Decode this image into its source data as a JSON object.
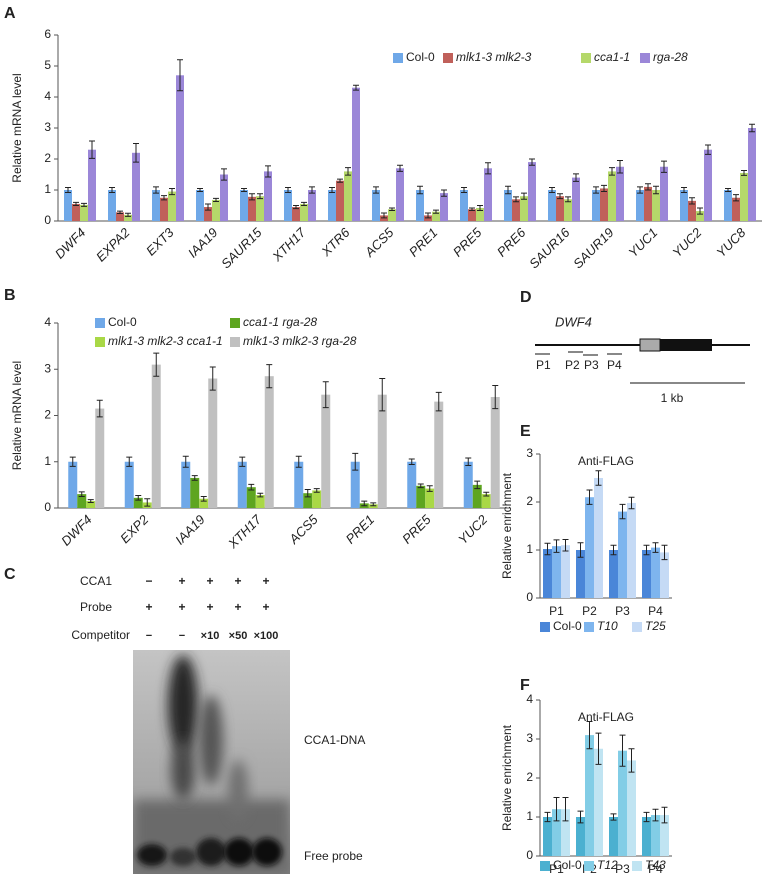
{
  "panel_labels": [
    "A",
    "B",
    "C",
    "D",
    "E",
    "F"
  ],
  "chart_data": [
    {
      "type": "bar",
      "y_label": "Relative mRNA level",
      "categories": [
        "DWF4",
        "EXPA2",
        "EXT3",
        "IAA19",
        "SAUR15",
        "XTH17",
        "XTR6",
        "ACS5",
        "PRE1",
        "PRE5",
        "PRE6",
        "SAUR16",
        "SAUR19",
        "YUC1",
        "YUC2",
        "YUC8"
      ],
      "ylim": [
        0,
        6
      ],
      "yticks": [
        0,
        1,
        2,
        3,
        4,
        5,
        6
      ],
      "grid": false,
      "series": [
        {
          "name": "Col-0",
          "color": "#6fa8e8",
          "values": [
            1.0,
            1.0,
            1.0,
            1.0,
            1.0,
            1.0,
            1.0,
            1.0,
            1.0,
            1.0,
            1.0,
            1.0,
            1.0,
            1.0,
            1.0,
            1.0
          ],
          "errors": [
            0.08,
            0.08,
            0.1,
            0.05,
            0.05,
            0.08,
            0.08,
            0.1,
            0.12,
            0.08,
            0.12,
            0.08,
            0.1,
            0.1,
            0.08,
            0.05
          ]
        },
        {
          "name": "mlk1-3 mlk2-3",
          "color": "#c0605a",
          "values": [
            0.55,
            0.28,
            0.75,
            0.45,
            0.78,
            0.45,
            1.3,
            0.18,
            0.18,
            0.38,
            0.7,
            0.8,
            1.05,
            1.1,
            0.65,
            0.75
          ],
          "errors": [
            0.05,
            0.04,
            0.07,
            0.1,
            0.1,
            0.05,
            0.05,
            0.08,
            0.08,
            0.04,
            0.08,
            0.08,
            0.1,
            0.1,
            0.1,
            0.1
          ]
        },
        {
          "name": "cca1-1",
          "color": "#b5d86a",
          "values": [
            0.52,
            0.2,
            0.95,
            0.68,
            0.8,
            0.55,
            1.6,
            0.38,
            0.3,
            0.42,
            0.8,
            0.7,
            1.6,
            1.0,
            0.32,
            1.55
          ],
          "errors": [
            0.05,
            0.05,
            0.1,
            0.05,
            0.08,
            0.05,
            0.12,
            0.04,
            0.05,
            0.08,
            0.1,
            0.08,
            0.12,
            0.12,
            0.1,
            0.08
          ]
        },
        {
          "name": "rga-28",
          "color": "#9b87d8",
          "values": [
            2.3,
            2.2,
            4.7,
            1.5,
            1.6,
            1.0,
            4.3,
            1.7,
            0.9,
            1.7,
            1.9,
            1.4,
            1.75,
            1.75,
            2.3,
            3.0
          ],
          "errors": [
            0.28,
            0.3,
            0.5,
            0.18,
            0.18,
            0.1,
            0.08,
            0.1,
            0.1,
            0.18,
            0.1,
            0.12,
            0.2,
            0.18,
            0.15,
            0.12
          ]
        }
      ]
    },
    {
      "type": "bar",
      "y_label": "Relative mRNA level",
      "categories": [
        "DWF4",
        "EXP2",
        "IAA19",
        "XTH17",
        "ACS5",
        "PRE1",
        "PRE5",
        "YUC2"
      ],
      "ylim": [
        0,
        4
      ],
      "yticks": [
        0,
        1,
        2,
        3,
        4
      ],
      "grid": false,
      "series": [
        {
          "name": "Col-0",
          "color": "#6fa8e8",
          "values": [
            1.0,
            1.0,
            1.0,
            1.0,
            1.0,
            1.0,
            1.0,
            1.0
          ],
          "errors": [
            0.1,
            0.1,
            0.12,
            0.1,
            0.12,
            0.18,
            0.06,
            0.08
          ]
        },
        {
          "name": "cca1-1 rga-28",
          "color": "#5ea520",
          "values": [
            0.3,
            0.22,
            0.65,
            0.45,
            0.32,
            0.1,
            0.48,
            0.5
          ],
          "errors": [
            0.05,
            0.05,
            0.05,
            0.06,
            0.08,
            0.05,
            0.04,
            0.08
          ]
        },
        {
          "name": "mlk1-3 mlk2-3 cca1-1",
          "color": "#a9d846",
          "values": [
            0.15,
            0.12,
            0.2,
            0.28,
            0.38,
            0.08,
            0.42,
            0.3
          ],
          "errors": [
            0.03,
            0.08,
            0.05,
            0.04,
            0.04,
            0.03,
            0.06,
            0.04
          ]
        },
        {
          "name": "mlk1-3 mlk2-3 rga-28",
          "color": "#c0c0c0",
          "values": [
            2.15,
            3.1,
            2.8,
            2.85,
            2.45,
            2.45,
            2.3,
            2.4
          ],
          "errors": [
            0.18,
            0.25,
            0.25,
            0.25,
            0.28,
            0.35,
            0.2,
            0.25
          ]
        }
      ]
    },
    {
      "type": "bar",
      "title": "Anti-FLAG",
      "y_label": "Relative enrichment",
      "categories": [
        "P1",
        "P2",
        "P3",
        "P4"
      ],
      "ylim": [
        0,
        3
      ],
      "yticks": [
        0,
        1,
        2,
        3
      ],
      "grid": false,
      "series": [
        {
          "name": "Col-0",
          "color": "#4a86d8",
          "values": [
            1.02,
            1.0,
            1.0,
            1.0
          ],
          "errors": [
            0.12,
            0.15,
            0.1,
            0.1
          ]
        },
        {
          "name": "T10",
          "color": "#7eb5ee",
          "values": [
            1.08,
            2.1,
            1.8,
            1.05
          ],
          "errors": [
            0.13,
            0.15,
            0.15,
            0.1
          ]
        },
        {
          "name": "T25",
          "color": "#c5daf5",
          "values": [
            1.1,
            2.5,
            1.98,
            0.95
          ],
          "errors": [
            0.12,
            0.15,
            0.12,
            0.15
          ]
        }
      ]
    },
    {
      "type": "bar",
      "title": "Anti-FLAG",
      "y_label": "Relative enrichment",
      "categories": [
        "P1",
        "P2",
        "P3",
        "P4"
      ],
      "ylim": [
        0,
        4
      ],
      "yticks": [
        0,
        1,
        2,
        3,
        4
      ],
      "grid": false,
      "series": [
        {
          "name": "Col-0",
          "color": "#4bb0d0",
          "values": [
            1.0,
            1.0,
            1.0,
            1.0
          ],
          "errors": [
            0.12,
            0.15,
            0.08,
            0.12
          ]
        },
        {
          "name": "T12",
          "color": "#82cde6",
          "values": [
            1.2,
            3.1,
            2.7,
            1.05
          ],
          "errors": [
            0.3,
            0.35,
            0.4,
            0.15
          ]
        },
        {
          "name": "T43",
          "color": "#c0e4f2",
          "values": [
            1.2,
            2.75,
            2.45,
            1.05
          ],
          "errors": [
            0.3,
            0.4,
            0.3,
            0.2
          ]
        }
      ]
    }
  ],
  "gel": {
    "rows": [
      {
        "label": "CCA1",
        "cells": [
          "−",
          "+",
          "+",
          "+",
          "+"
        ]
      },
      {
        "label": "Probe",
        "cells": [
          "+",
          "+",
          "+",
          "+",
          "+"
        ]
      },
      {
        "label": "Competitor",
        "cells": [
          "−",
          "−",
          "×10",
          "×50",
          "×100"
        ]
      }
    ],
    "bands": [
      "CCA1-DNA",
      "Free probe"
    ]
  },
  "gene_diagram": {
    "gene": "DWF4",
    "primers": [
      "P1",
      "P2",
      "P3",
      "P4"
    ],
    "scale": "1 kb"
  }
}
